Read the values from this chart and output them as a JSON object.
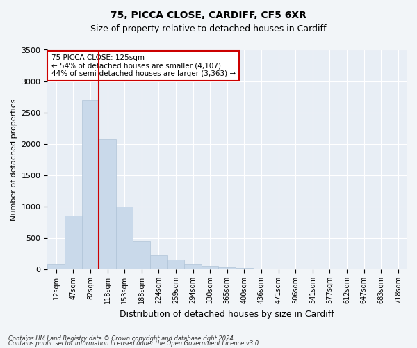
{
  "title1": "75, PICCA CLOSE, CARDIFF, CF5 6XR",
  "title2": "Size of property relative to detached houses in Cardiff",
  "xlabel": "Distribution of detached houses by size in Cardiff",
  "ylabel": "Number of detached properties",
  "categories": [
    "12sqm",
    "47sqm",
    "82sqm",
    "118sqm",
    "153sqm",
    "188sqm",
    "224sqm",
    "259sqm",
    "294sqm",
    "330sqm",
    "365sqm",
    "400sqm",
    "436sqm",
    "471sqm",
    "506sqm",
    "541sqm",
    "577sqm",
    "612sqm",
    "647sqm",
    "683sqm",
    "718sqm"
  ],
  "values": [
    75,
    850,
    2700,
    2075,
    1000,
    450,
    225,
    150,
    75,
    50,
    35,
    20,
    12,
    8,
    6,
    5,
    4,
    3,
    2,
    2,
    1
  ],
  "bar_color": "#c9d9ea",
  "bar_edge_color": "#b0c4d8",
  "vline_color": "#cc0000",
  "vline_x": 2.5,
  "annotation_text": "75 PICCA CLOSE: 125sqm\n← 54% of detached houses are smaller (4,107)\n44% of semi-detached houses are larger (3,363) →",
  "annotation_box_color": "#ffffff",
  "annotation_box_edge": "#cc0000",
  "ylim": [
    0,
    3500
  ],
  "yticks": [
    0,
    500,
    1000,
    1500,
    2000,
    2500,
    3000,
    3500
  ],
  "footnote1": "Contains HM Land Registry data © Crown copyright and database right 2024.",
  "footnote2": "Contains public sector information licensed under the Open Government Licence v3.0.",
  "bg_color": "#f2f5f8",
  "plot_bg_color": "#e8eef5"
}
